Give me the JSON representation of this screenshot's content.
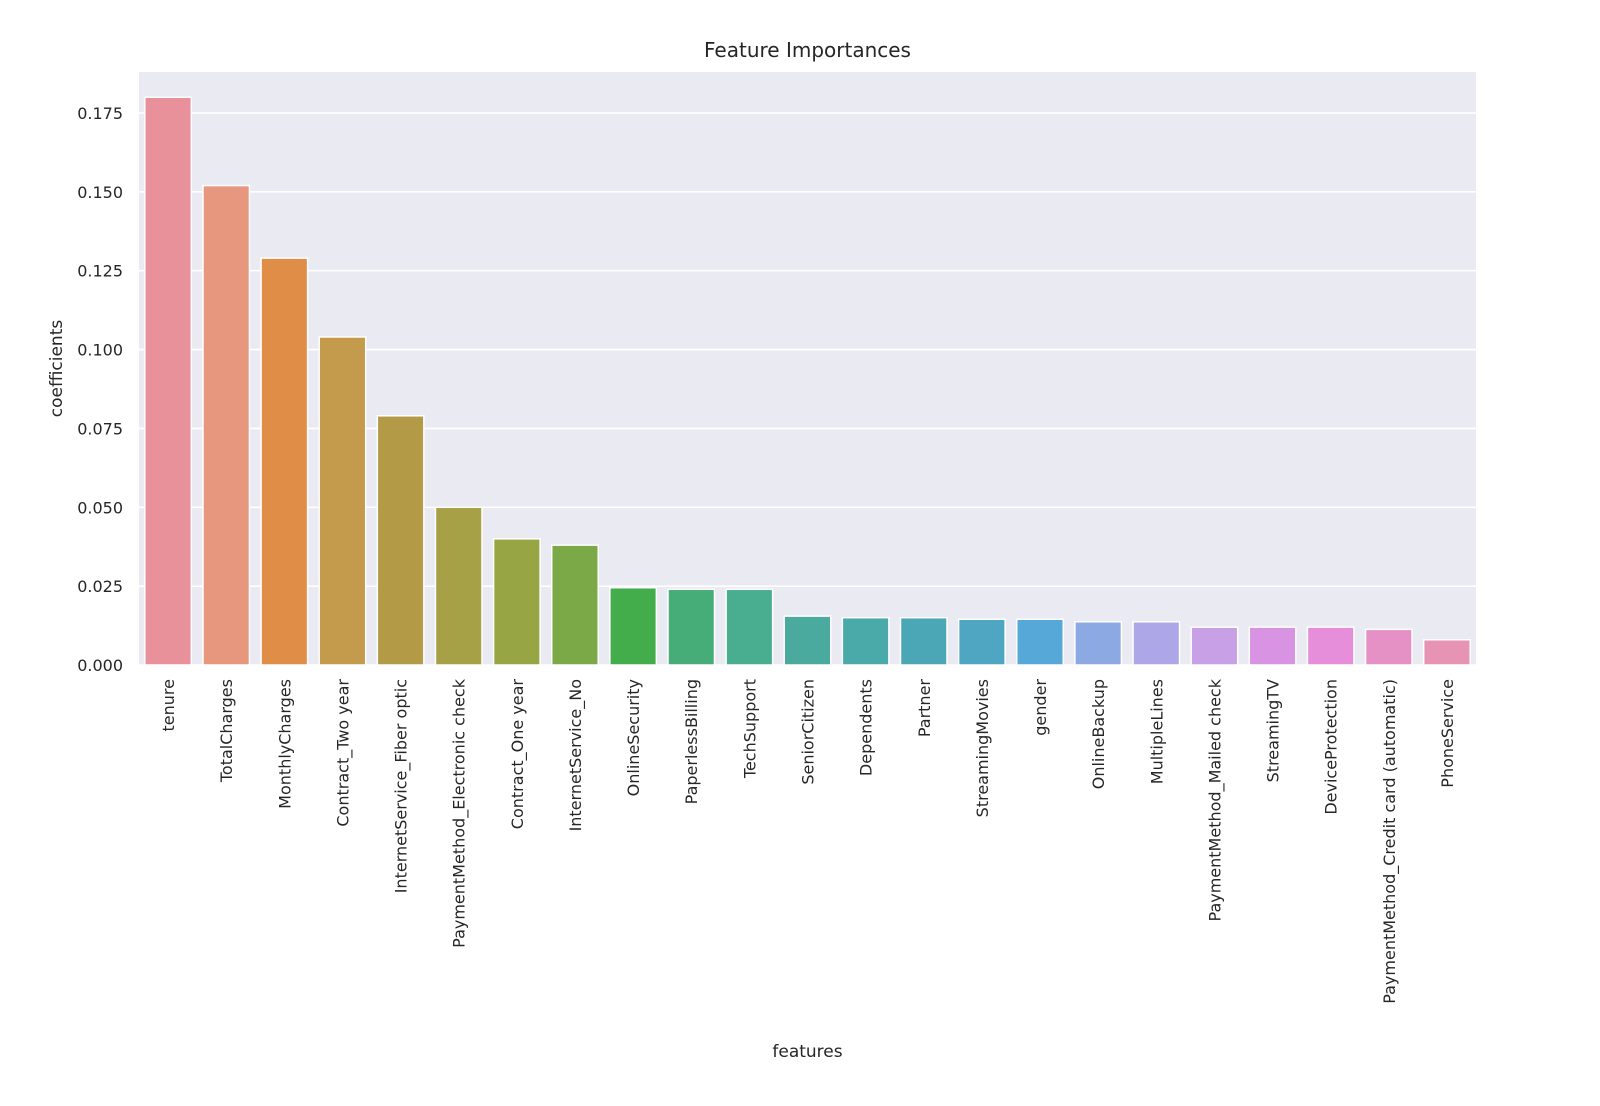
{
  "chart_data": {
    "type": "bar",
    "title": "Feature Importances",
    "xlabel": "features",
    "ylabel": "coefficients",
    "ylim": [
      0,
      0.188
    ],
    "yticks": [
      0.0,
      0.025,
      0.05,
      0.075,
      0.1,
      0.125,
      0.15,
      0.175
    ],
    "ytick_labels": [
      "0.000",
      "0.025",
      "0.050",
      "0.075",
      "0.100",
      "0.125",
      "0.150",
      "0.175"
    ],
    "grid": true,
    "legend": "none",
    "categories": [
      "tenure",
      "TotalCharges",
      "MonthlyCharges",
      "Contract_Two year",
      "InternetService_Fiber optic",
      "PaymentMethod_Electronic check",
      "Contract_One year",
      "InternetService_No",
      "OnlineSecurity",
      "PaperlessBilling",
      "TechSupport",
      "SeniorCitizen",
      "Dependents",
      "Partner",
      "StreamingMovies",
      "gender",
      "OnlineBackup",
      "MultipleLines",
      "PaymentMethod_Mailed check",
      "StreamingTV",
      "DeviceProtection",
      "PaymentMethod_Credit card (automatic)",
      "PhoneService"
    ],
    "values": [
      0.18,
      0.152,
      0.129,
      0.104,
      0.079,
      0.05,
      0.04,
      0.038,
      0.0245,
      0.024,
      0.024,
      0.0155,
      0.015,
      0.015,
      0.0145,
      0.0145,
      0.0137,
      0.0137,
      0.012,
      0.012,
      0.012,
      0.0113,
      0.008
    ],
    "colors": [
      "#e8919a",
      "#e8977f",
      "#df8d47",
      "#c49a4d",
      "#b39a47",
      "#a6a046",
      "#98a545",
      "#7ba947",
      "#43ad4c",
      "#46ad79",
      "#48ae8f",
      "#49aa9d",
      "#4aa9a9",
      "#4ba7b5",
      "#4ea6c3",
      "#55a8d8",
      "#8ca9e3",
      "#ada6e7",
      "#c8a0e5",
      "#d993e3",
      "#e68ed9",
      "#e691c6",
      "#e693b4"
    ],
    "background": "#eaeaf2",
    "grid_color": "#ffffff"
  }
}
